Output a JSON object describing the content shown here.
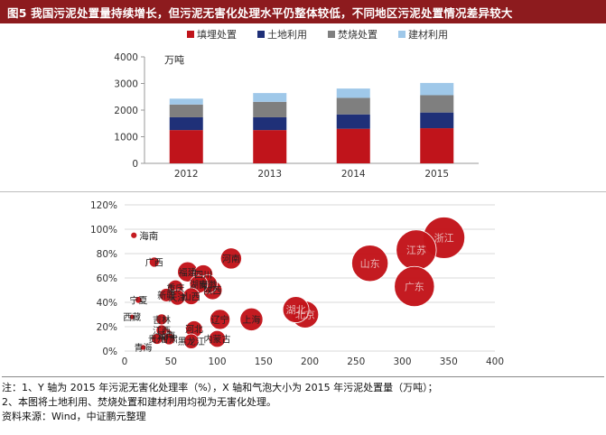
{
  "title": "图5 我国污泥处置量持续增长，但污泥无害化处理水平仍整体较低，不同地区污泥处置情况差异较大",
  "chart_data": [
    {
      "type": "bar",
      "stacked": true,
      "unit_label": "万吨",
      "categories": [
        "2012",
        "2013",
        "2014",
        "2015"
      ],
      "series": [
        {
          "name": "填埋处置",
          "values": [
            1250,
            1250,
            1300,
            1320
          ],
          "color": "#c0141b"
        },
        {
          "name": "土地利用",
          "values": [
            480,
            480,
            540,
            590
          ],
          "color": "#1f3078"
        },
        {
          "name": "焚烧处置",
          "values": [
            480,
            580,
            620,
            650
          ],
          "color": "#7f7f7f"
        },
        {
          "name": "建材利用",
          "values": [
            220,
            330,
            350,
            460
          ],
          "color": "#9fc8e9"
        }
      ],
      "ylim": [
        0,
        4000
      ],
      "yticks": [
        0,
        1000,
        2000,
        3000,
        4000
      ],
      "legend": "top",
      "grid": false
    },
    {
      "type": "scatter",
      "bubble": true,
      "bubble_color": "#c3141a",
      "xlim": [
        0,
        400
      ],
      "xticks": [
        0,
        50,
        100,
        150,
        200,
        250,
        300,
        350,
        400
      ],
      "ylim": [
        0,
        120
      ],
      "yticks": [
        "0%",
        "20%",
        "40%",
        "60%",
        "80%",
        "100%",
        "120%"
      ],
      "points": [
        {
          "label": "海南",
          "x": 10,
          "y": 95,
          "size": 10
        },
        {
          "label": "广西",
          "x": 32,
          "y": 73,
          "size": 25
        },
        {
          "label": "福建",
          "x": 68,
          "y": 65,
          "size": 100
        },
        {
          "label": "四川",
          "x": 85,
          "y": 63,
          "size": 90
        },
        {
          "label": "安徽",
          "x": 90,
          "y": 55,
          "size": 85
        },
        {
          "label": "湖南",
          "x": 80,
          "y": 55,
          "size": 80
        },
        {
          "label": "陕西",
          "x": 95,
          "y": 50,
          "size": 90
        },
        {
          "label": "重庆",
          "x": 55,
          "y": 52,
          "size": 60
        },
        {
          "label": "山西",
          "x": 72,
          "y": 45,
          "size": 70
        },
        {
          "label": "天津",
          "x": 57,
          "y": 44,
          "size": 60
        },
        {
          "label": "新疆",
          "x": 45,
          "y": 46,
          "size": 45
        },
        {
          "label": "宁夏",
          "x": 15,
          "y": 42,
          "size": 12
        },
        {
          "label": "河南",
          "x": 115,
          "y": 76,
          "size": 110
        },
        {
          "label": "浙江",
          "x": 345,
          "y": 93,
          "size": 430
        },
        {
          "label": "江苏",
          "x": 315,
          "y": 83,
          "size": 400
        },
        {
          "label": "山东",
          "x": 265,
          "y": 72,
          "size": 330
        },
        {
          "label": "广东",
          "x": 313,
          "y": 53,
          "size": 400
        },
        {
          "label": "湖北",
          "x": 185,
          "y": 34,
          "size": 170
        },
        {
          "label": "北京",
          "x": 195,
          "y": 30,
          "size": 180
        },
        {
          "label": "上海",
          "x": 137,
          "y": 26,
          "size": 130
        },
        {
          "label": "辽宁",
          "x": 103,
          "y": 26,
          "size": 100
        },
        {
          "label": "西藏",
          "x": 8,
          "y": 28,
          "size": 5
        },
        {
          "label": "吉林",
          "x": 40,
          "y": 26,
          "size": 30
        },
        {
          "label": "江西",
          "x": 40,
          "y": 17,
          "size": 30
        },
        {
          "label": "河北",
          "x": 75,
          "y": 18,
          "size": 70
        },
        {
          "label": "云南",
          "x": 45,
          "y": 13,
          "size": 40
        },
        {
          "label": "贵州",
          "x": 35,
          "y": 10,
          "size": 30
        },
        {
          "label": "甘肃",
          "x": 48,
          "y": 10,
          "size": 35
        },
        {
          "label": "黑龙江",
          "x": 72,
          "y": 8,
          "size": 55
        },
        {
          "label": "内蒙古",
          "x": 100,
          "y": 10,
          "size": 70
        },
        {
          "label": "青海",
          "x": 20,
          "y": 3,
          "size": 8
        }
      ]
    }
  ],
  "notes": [
    "注：1、Y 轴为 2015 年污泥无害化处理率（%），X 轴和气泡大小为 2015 年污泥处置量（万吨）；",
    "2、本图将土地利用、焚烧处置和建材利用均视为无害化处理。",
    "资料来源：Wind，中证鹏元整理"
  ]
}
